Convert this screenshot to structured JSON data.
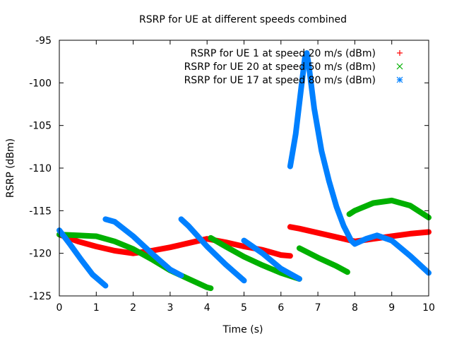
{
  "chart_data": {
    "type": "scatter",
    "title": "RSRP for UE at different speeds combined",
    "xlabel": "Time (s)",
    "ylabel": "RSRP (dBm)",
    "xlim": [
      0,
      10
    ],
    "ylim": [
      -125,
      -95
    ],
    "xticks": [
      "0",
      "1",
      "2",
      "3",
      "4",
      "5",
      "6",
      "7",
      "8",
      "9",
      "10"
    ],
    "yticks": [
      "-95",
      "-100",
      "-105",
      "-110",
      "-115",
      "-120",
      "-125"
    ],
    "grid": false,
    "legend_position": "top-right",
    "series": [
      {
        "name": "RSRP for UE 1 at speed 20 m/s (dBm)",
        "color": "#ff0000",
        "marker": "plus",
        "segments": [
          [
            [
              0.0,
              -117.8
            ],
            [
              0.5,
              -118.6
            ],
            [
              1.0,
              -119.2
            ],
            [
              1.5,
              -119.7
            ],
            [
              2.0,
              -120.0
            ],
            [
              2.5,
              -119.7
            ],
            [
              3.0,
              -119.3
            ],
            [
              3.5,
              -118.8
            ],
            [
              4.0,
              -118.3
            ],
            [
              4.5,
              -118.7
            ],
            [
              5.0,
              -119.2
            ],
            [
              5.5,
              -119.6
            ],
            [
              6.0,
              -120.2
            ],
            [
              6.25,
              -120.3
            ]
          ],
          [
            [
              6.25,
              -116.9
            ],
            [
              6.5,
              -117.1
            ],
            [
              7.0,
              -117.6
            ],
            [
              7.5,
              -118.1
            ],
            [
              8.0,
              -118.6
            ],
            [
              8.5,
              -118.3
            ],
            [
              9.0,
              -118.0
            ],
            [
              9.5,
              -117.7
            ],
            [
              10.0,
              -117.5
            ]
          ]
        ]
      },
      {
        "name": "RSRP for UE 20 at speed 50 m/s (dBm)",
        "color": "#00b000",
        "marker": "cross",
        "segments": [
          [
            [
              0.0,
              -117.8
            ],
            [
              0.5,
              -117.9
            ],
            [
              1.0,
              -118.0
            ],
            [
              1.5,
              -118.6
            ],
            [
              2.0,
              -119.5
            ],
            [
              2.5,
              -120.7
            ],
            [
              3.0,
              -122.0
            ],
            [
              3.5,
              -123.0
            ],
            [
              4.0,
              -124.0
            ],
            [
              4.1,
              -124.1
            ]
          ],
          [
            [
              4.1,
              -118.2
            ],
            [
              4.5,
              -119.2
            ],
            [
              5.0,
              -120.4
            ],
            [
              5.5,
              -121.4
            ],
            [
              6.0,
              -122.3
            ],
            [
              6.5,
              -123.0
            ]
          ],
          [
            [
              6.5,
              -119.4
            ],
            [
              7.0,
              -120.5
            ],
            [
              7.5,
              -121.5
            ],
            [
              7.8,
              -122.2
            ]
          ],
          [
            [
              7.85,
              -115.4
            ],
            [
              8.0,
              -115.0
            ],
            [
              8.5,
              -114.1
            ],
            [
              9.0,
              -113.8
            ],
            [
              9.5,
              -114.4
            ],
            [
              10.0,
              -115.8
            ]
          ]
        ]
      },
      {
        "name": "RSRP for UE 17 at speed 80 m/s (dBm)",
        "color": "#0080ff",
        "marker": "star",
        "segments": [
          [
            [
              0.0,
              -117.3
            ],
            [
              0.3,
              -119.0
            ],
            [
              0.6,
              -120.8
            ],
            [
              0.9,
              -122.5
            ],
            [
              1.25,
              -123.8
            ]
          ],
          [
            [
              1.25,
              -116.0
            ],
            [
              1.5,
              -116.3
            ],
            [
              2.0,
              -118.0
            ],
            [
              2.5,
              -120.0
            ],
            [
              3.0,
              -121.9
            ],
            [
              3.3,
              -122.6
            ]
          ],
          [
            [
              3.3,
              -116.0
            ],
            [
              3.5,
              -116.8
            ],
            [
              4.0,
              -119.2
            ],
            [
              4.5,
              -121.3
            ],
            [
              5.0,
              -123.2
            ]
          ],
          [
            [
              5.0,
              -118.5
            ],
            [
              5.5,
              -120.0
            ],
            [
              6.0,
              -121.8
            ],
            [
              6.5,
              -123.0
            ]
          ],
          [
            [
              6.25,
              -109.8
            ],
            [
              6.4,
              -106.0
            ],
            [
              6.55,
              -100.5
            ],
            [
              6.65,
              -97.0
            ],
            [
              6.7,
              -96.5
            ],
            [
              6.75,
              -97.8
            ],
            [
              6.9,
              -103.0
            ],
            [
              7.1,
              -108.0
            ],
            [
              7.3,
              -111.5
            ],
            [
              7.5,
              -114.5
            ],
            [
              7.7,
              -116.8
            ],
            [
              7.9,
              -118.5
            ],
            [
              8.0,
              -118.9
            ],
            [
              8.3,
              -118.3
            ],
            [
              8.6,
              -117.9
            ],
            [
              9.0,
              -118.5
            ],
            [
              9.5,
              -120.3
            ],
            [
              10.0,
              -122.3
            ]
          ]
        ]
      }
    ]
  }
}
